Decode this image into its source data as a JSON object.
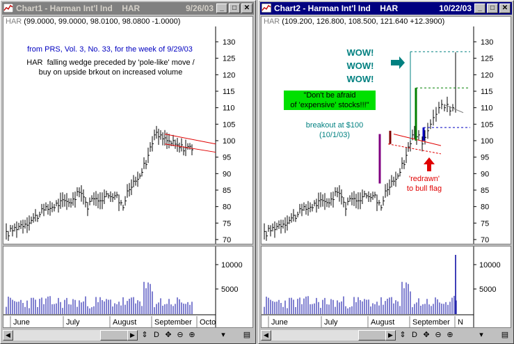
{
  "chart1": {
    "title": "Chart1 - Harman Int'l Ind    HAR",
    "date": "9/26/03",
    "info_symbol": "HAR",
    "info_values": "(99.0000, 99.0000, 98.0100, 98.0800 -1.0000)",
    "annotation_source": "from PRS, Vol. 3, No. 33, for the week of 9/29/03",
    "annotation_pattern": "HAR  falling wedge preceded by 'pole-like' move /\nbuy on upside brkout on increased volume",
    "price_ticks": [
      "130",
      "125",
      "120",
      "115",
      "110",
      "105",
      "100",
      "95",
      "90",
      "85",
      "80",
      "75",
      "70"
    ],
    "volume_ticks": [
      "10000",
      "5000"
    ],
    "months": [
      "June",
      "July",
      "August",
      "September",
      "Octo"
    ]
  },
  "chart2": {
    "title": "Chart2 - Harman Int'l Ind    HAR",
    "date": "10/22/03",
    "info_symbol": "HAR",
    "info_values": "(109.200, 126.800, 108.500, 121.640 +12.3900)",
    "annotation_wow": "WOW!\nWOW!\nWOW!",
    "annotation_expensive": "\"Don't be afraid\nof 'expensive' stocks!!!\"",
    "annotation_breakout": "breakout at $100\n(10/1/03)",
    "annotation_redrawn": "'redrawn'\nto bull flag",
    "price_ticks": [
      "130",
      "125",
      "120",
      "115",
      "110",
      "105",
      "100",
      "95",
      "90",
      "85",
      "80",
      "75",
      "70"
    ],
    "volume_ticks": [
      "10000",
      "5000"
    ],
    "months": [
      "June",
      "July",
      "August",
      "September",
      "N"
    ]
  },
  "toolbar_glyphs": [
    "◀",
    "▶",
    "⇕",
    "D",
    "✥",
    "⊖",
    "⊕",
    "▾",
    "▤"
  ],
  "window_buttons": [
    "_",
    "□",
    "✕"
  ],
  "colors": {
    "active_title": "#000080",
    "inactive_title": "#808080",
    "wow_text": "#008080",
    "breakout_text": "#008080",
    "expensive_bg": "#00e000",
    "redrawn_text": "#e00000",
    "annotation_blue": "#0000c0",
    "pole": "#800080",
    "flag_line": "#e00000",
    "volume_bars": "#0000a0"
  }
}
